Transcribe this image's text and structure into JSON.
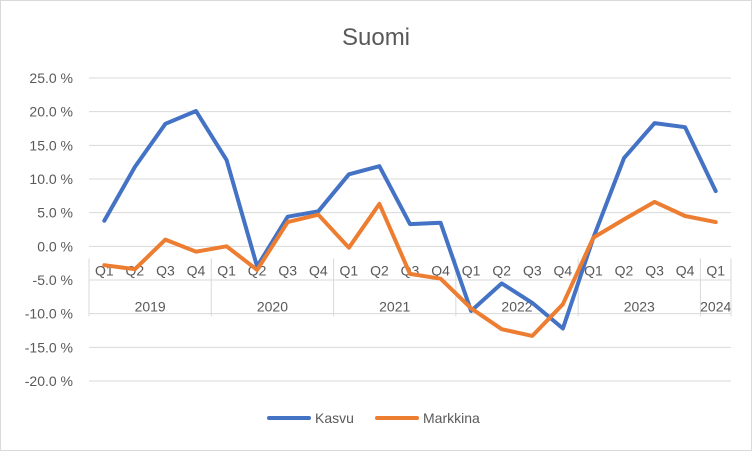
{
  "chart_data": {
    "type": "line",
    "title": "Suomi",
    "xlabel": "",
    "ylabel": "",
    "ylim": [
      -20,
      25
    ],
    "ytick_step": 5,
    "ytick_labels": [
      "25.0 %",
      "20.0 %",
      "15.0 %",
      "10.0 %",
      "5.0 %",
      "0.0 %",
      "-5.0 %",
      "-10.0 %",
      "-15.0 %",
      "-20.0 %"
    ],
    "categories": [
      "Q1",
      "Q2",
      "Q3",
      "Q4",
      "Q1",
      "Q2",
      "Q3",
      "Q4",
      "Q1",
      "Q2",
      "Q3",
      "Q4",
      "Q1",
      "Q2",
      "Q3",
      "Q4",
      "Q1",
      "Q2",
      "Q3",
      "Q4",
      "Q1"
    ],
    "years": [
      {
        "label": "2019",
        "count": 4
      },
      {
        "label": "2020",
        "count": 4
      },
      {
        "label": "2021",
        "count": 4
      },
      {
        "label": "2022",
        "count": 4
      },
      {
        "label": "2023",
        "count": 4
      },
      {
        "label": "2024",
        "count": 1
      }
    ],
    "grid": true,
    "legend_position": "bottom",
    "series": [
      {
        "name": "Kasvu",
        "color": "#4472c4",
        "values": [
          3.8,
          11.8,
          18.2,
          20.1,
          12.8,
          -3.0,
          4.4,
          5.2,
          10.7,
          11.9,
          3.3,
          3.5,
          -9.6,
          -5.5,
          -8.4,
          -12.2,
          1.3,
          13.1,
          18.3,
          17.7,
          8.2
        ]
      },
      {
        "name": "Markkina",
        "color": "#ed7d31",
        "values": [
          -2.8,
          -3.4,
          1.0,
          -0.8,
          0.0,
          -3.5,
          3.6,
          4.7,
          -0.2,
          6.3,
          -4.1,
          -4.8,
          -9.2,
          -12.3,
          -13.3,
          -8.6,
          1.3,
          4.0,
          6.6,
          4.5,
          3.6
        ]
      }
    ]
  }
}
